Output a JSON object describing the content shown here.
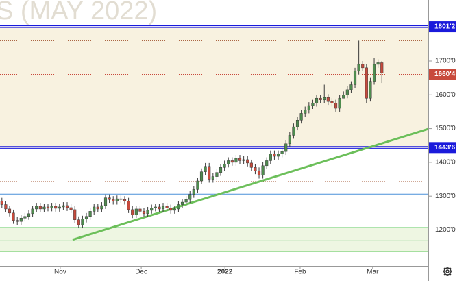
{
  "chart_data": {
    "type": "candlestick",
    "title": "S (MAY 2022)",
    "x": [
      0,
      1,
      2,
      3,
      4,
      5,
      6,
      7,
      8,
      9,
      10,
      11,
      12,
      13,
      14,
      15,
      16,
      17,
      18,
      19,
      20,
      21,
      22,
      23,
      24,
      25,
      26,
      27,
      28,
      29,
      30,
      31,
      32,
      33,
      34,
      35,
      36,
      37,
      38,
      39,
      40,
      41,
      42,
      43,
      44,
      45,
      46,
      47,
      48,
      49,
      50,
      51,
      52,
      53,
      54,
      55,
      56,
      57,
      58,
      59,
      60,
      61,
      62,
      63,
      64,
      65,
      66,
      67,
      68,
      69,
      70,
      71,
      72,
      73,
      74,
      75,
      76,
      77,
      78,
      79,
      80,
      81,
      82,
      83,
      84,
      85,
      86,
      87,
      88,
      89,
      90,
      91,
      92,
      93,
      94,
      95,
      96,
      97,
      98,
      99
    ],
    "open": [
      1285,
      1275,
      1262,
      1250,
      1228,
      1225,
      1235,
      1240,
      1248,
      1262,
      1270,
      1262,
      1268,
      1265,
      1270,
      1264,
      1268,
      1272,
      1266,
      1260,
      1230,
      1215,
      1232,
      1240,
      1255,
      1268,
      1262,
      1272,
      1295,
      1290,
      1285,
      1292,
      1290,
      1285,
      1260,
      1245,
      1262,
      1255,
      1248,
      1258,
      1265,
      1268,
      1262,
      1270,
      1265,
      1258,
      1262,
      1275,
      1282,
      1290,
      1305,
      1320,
      1345,
      1372,
      1388,
      1350,
      1358,
      1370,
      1385,
      1395,
      1405,
      1400,
      1412,
      1405,
      1408,
      1398,
      1385,
      1375,
      1362,
      1390,
      1405,
      1425,
      1418,
      1425,
      1432,
      1455,
      1480,
      1505,
      1525,
      1545,
      1555,
      1568,
      1575,
      1590,
      1585,
      1592,
      1580,
      1575,
      1560,
      1590,
      1600,
      1615,
      1630,
      1670,
      1690,
      1680,
      1590,
      1640,
      1690,
      1695
    ],
    "high": [
      1295,
      1285,
      1272,
      1260,
      1238,
      1245,
      1250,
      1258,
      1272,
      1280,
      1280,
      1278,
      1278,
      1280,
      1280,
      1278,
      1282,
      1282,
      1276,
      1270,
      1240,
      1242,
      1250,
      1265,
      1278,
      1278,
      1282,
      1305,
      1305,
      1300,
      1302,
      1302,
      1300,
      1295,
      1270,
      1272,
      1272,
      1265,
      1268,
      1275,
      1278,
      1278,
      1280,
      1280,
      1275,
      1272,
      1285,
      1292,
      1300,
      1315,
      1330,
      1355,
      1382,
      1398,
      1398,
      1368,
      1380,
      1395,
      1405,
      1415,
      1415,
      1422,
      1422,
      1418,
      1418,
      1408,
      1395,
      1385,
      1400,
      1415,
      1435,
      1435,
      1435,
      1442,
      1465,
      1490,
      1515,
      1535,
      1555,
      1565,
      1578,
      1585,
      1600,
      1600,
      1630,
      1602,
      1590,
      1585,
      1600,
      1610,
      1625,
      1640,
      1680,
      1760,
      1700,
      1690,
      1650,
      1710,
      1705,
      1700
    ],
    "low": [
      1265,
      1252,
      1240,
      1218,
      1215,
      1215,
      1225,
      1230,
      1238,
      1252,
      1252,
      1252,
      1255,
      1255,
      1254,
      1254,
      1258,
      1256,
      1250,
      1220,
      1205,
      1205,
      1222,
      1230,
      1245,
      1252,
      1252,
      1262,
      1280,
      1275,
      1275,
      1280,
      1275,
      1250,
      1235,
      1235,
      1245,
      1238,
      1238,
      1248,
      1255,
      1252,
      1252,
      1255,
      1248,
      1248,
      1252,
      1265,
      1272,
      1280,
      1295,
      1310,
      1335,
      1362,
      1340,
      1340,
      1348,
      1360,
      1375,
      1385,
      1390,
      1390,
      1395,
      1395,
      1388,
      1375,
      1365,
      1352,
      1352,
      1380,
      1395,
      1408,
      1408,
      1415,
      1422,
      1445,
      1470,
      1495,
      1515,
      1535,
      1545,
      1558,
      1565,
      1575,
      1575,
      1570,
      1565,
      1550,
      1550,
      1590,
      1590,
      1605,
      1620,
      1660,
      1670,
      1575,
      1580,
      1630,
      1680,
      1635
    ],
    "close": [
      1275,
      1262,
      1250,
      1228,
      1225,
      1235,
      1240,
      1248,
      1262,
      1270,
      1262,
      1268,
      1265,
      1270,
      1264,
      1268,
      1272,
      1266,
      1260,
      1230,
      1215,
      1232,
      1240,
      1255,
      1268,
      1262,
      1272,
      1295,
      1290,
      1285,
      1292,
      1290,
      1285,
      1260,
      1245,
      1262,
      1255,
      1248,
      1258,
      1265,
      1268,
      1262,
      1270,
      1265,
      1258,
      1262,
      1275,
      1282,
      1290,
      1305,
      1320,
      1345,
      1372,
      1388,
      1350,
      1358,
      1370,
      1385,
      1395,
      1405,
      1400,
      1412,
      1405,
      1408,
      1398,
      1385,
      1375,
      1362,
      1390,
      1405,
      1425,
      1418,
      1425,
      1432,
      1455,
      1480,
      1505,
      1525,
      1545,
      1555,
      1568,
      1575,
      1590,
      1585,
      1592,
      1580,
      1575,
      1560,
      1590,
      1600,
      1615,
      1630,
      1670,
      1690,
      1680,
      1590,
      1640,
      1690,
      1695,
      1665
    ],
    "up_color": "#4e8c4e",
    "down_color": "#c84a3c",
    "xlim": [
      -0.5,
      111.1
    ],
    "xticks": [
      {
        "value": 15.2,
        "label": "Nov"
      },
      {
        "value": 36.3,
        "label": "Dec"
      },
      {
        "value": 58.1,
        "label": "2022"
      },
      {
        "value": 77.7,
        "label": "Feb"
      },
      {
        "value": 96.6,
        "label": "Mar"
      }
    ],
    "ylim": [
      1093.5,
      1880.5
    ],
    "yticks": [
      {
        "value": 1200,
        "label": "1200'0"
      },
      {
        "value": 1300,
        "label": "1300'0"
      },
      {
        "value": 1400,
        "label": "1400'0"
      },
      {
        "value": 1500,
        "label": "1500'0"
      },
      {
        "value": 1600,
        "label": "1600'0"
      },
      {
        "value": 1700,
        "label": "1700'0"
      }
    ],
    "zones": [
      {
        "from": 1443.75,
        "to": 1801.25,
        "color": "#f8f2e0"
      },
      {
        "from": 1136,
        "to": 1207,
        "color": "#eef6e2"
      }
    ],
    "levels": [
      {
        "value": 1801.25,
        "label": "1801'2",
        "color": "#1a1adb",
        "style": "double"
      },
      {
        "value": 1443.75,
        "label": "1443'6",
        "color": "#1a1adb",
        "style": "double"
      },
      {
        "value": 1660.5,
        "label": "1660'4",
        "color": "#c84a3c",
        "style": "dotted"
      },
      {
        "value": 1760,
        "color": "#a0522d",
        "style": "dotted"
      },
      {
        "value": 1343,
        "color": "#a0522d",
        "style": "dotted"
      },
      {
        "value": 1306,
        "color": "#4a90d9",
        "style": "solid"
      },
      {
        "value": 1207,
        "color": "#5cc85c",
        "style": "solid"
      },
      {
        "value": 1168,
        "color": "#9ad89a",
        "style": "solid"
      },
      {
        "value": 1136,
        "color": "#5cc85c",
        "style": "solid"
      }
    ],
    "trendline": {
      "x": [
        18.4,
        111.1
      ],
      "y": [
        1171,
        1499
      ],
      "color": "#6cbf5a"
    }
  }
}
